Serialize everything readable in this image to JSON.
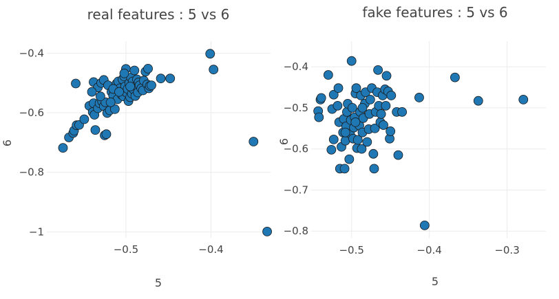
{
  "chart_data": [
    {
      "type": "scatter",
      "title": "real features : 5 vs 6",
      "xlabel": "5",
      "ylabel": "6",
      "xlim": [
        -0.593,
        -0.33
      ],
      "ylim": [
        -1.02,
        -0.36
      ],
      "xticks": [
        -0.5,
        -0.4
      ],
      "xtick_labels": [
        "−0.5",
        "−0.4"
      ],
      "yticks": [
        -0.4,
        -0.6,
        -0.8,
        -1.0
      ],
      "ytick_labels": [
        "−0.4",
        "−0.6",
        "−0.8",
        "−1"
      ],
      "grid": true,
      "color": "#1f77b4",
      "points": [
        [
          -0.574,
          -0.718
        ],
        [
          -0.567,
          -0.683
        ],
        [
          -0.562,
          -0.668
        ],
        [
          -0.561,
          -0.66
        ],
        [
          -0.558,
          -0.642
        ],
        [
          -0.555,
          -0.641
        ],
        [
          -0.549,
          -0.622
        ],
        [
          -0.559,
          -0.502
        ],
        [
          -0.543,
          -0.577
        ],
        [
          -0.539,
          -0.598
        ],
        [
          -0.538,
          -0.568
        ],
        [
          -0.537,
          -0.607
        ],
        [
          -0.536,
          -0.658
        ],
        [
          -0.533,
          -0.585
        ],
        [
          -0.531,
          -0.568
        ],
        [
          -0.528,
          -0.562
        ],
        [
          -0.526,
          -0.578
        ],
        [
          -0.524,
          -0.565
        ],
        [
          -0.522,
          -0.601
        ],
        [
          -0.525,
          -0.676
        ],
        [
          -0.523,
          -0.672
        ],
        [
          -0.538,
          -0.497
        ],
        [
          -0.533,
          -0.515
        ],
        [
          -0.529,
          -0.5
        ],
        [
          -0.526,
          -0.49
        ],
        [
          -0.521,
          -0.508
        ],
        [
          -0.519,
          -0.592
        ],
        [
          -0.517,
          -0.53
        ],
        [
          -0.515,
          -0.543
        ],
        [
          -0.513,
          -0.588
        ],
        [
          -0.511,
          -0.502
        ],
        [
          -0.51,
          -0.555
        ],
        [
          -0.509,
          -0.495
        ],
        [
          -0.507,
          -0.518
        ],
        [
          -0.505,
          -0.54
        ],
        [
          -0.504,
          -0.488
        ],
        [
          -0.503,
          -0.545
        ],
        [
          -0.502,
          -0.478
        ],
        [
          -0.501,
          -0.512
        ],
        [
          -0.5,
          -0.453
        ],
        [
          -0.499,
          -0.533
        ],
        [
          -0.498,
          -0.52
        ],
        [
          -0.497,
          -0.561
        ],
        [
          -0.496,
          -0.5
        ],
        [
          -0.495,
          -0.548
        ],
        [
          -0.494,
          -0.482
        ],
        [
          -0.493,
          -0.536
        ],
        [
          -0.492,
          -0.495
        ],
        [
          -0.491,
          -0.522
        ],
        [
          -0.49,
          -0.458
        ],
        [
          -0.489,
          -0.544
        ],
        [
          -0.488,
          -0.51
        ],
        [
          -0.487,
          -0.488
        ],
        [
          -0.486,
          -0.532
        ],
        [
          -0.485,
          -0.498
        ],
        [
          -0.484,
          -0.508
        ],
        [
          -0.482,
          -0.518
        ],
        [
          -0.48,
          -0.525
        ],
        [
          -0.479,
          -0.492
        ],
        [
          -0.477,
          -0.462
        ],
        [
          -0.475,
          -0.505
        ],
        [
          -0.474,
          -0.452
        ],
        [
          -0.473,
          -0.518
        ],
        [
          -0.472,
          -0.51
        ],
        [
          -0.47,
          -0.508
        ],
        [
          -0.459,
          -0.485
        ],
        [
          -0.448,
          -0.485
        ],
        [
          -0.54,
          -0.53
        ],
        [
          -0.53,
          -0.545
        ],
        [
          -0.515,
          -0.52
        ],
        [
          -0.508,
          -0.53
        ],
        [
          -0.495,
          -0.512
        ],
        [
          -0.518,
          -0.565
        ],
        [
          -0.502,
          -0.468
        ],
        [
          -0.401,
          -0.402
        ],
        [
          -0.397,
          -0.455
        ],
        [
          -0.35,
          -0.697
        ],
        [
          -0.334,
          -0.999
        ]
      ]
    },
    {
      "type": "scatter",
      "title": "fake features : 5 vs 6",
      "xlabel": "5",
      "ylabel": "6",
      "xlim": [
        -0.552,
        -0.25
      ],
      "ylim": [
        -0.818,
        -0.338
      ],
      "xticks": [
        -0.5,
        -0.4,
        -0.3
      ],
      "xtick_labels": [
        "−0.5",
        "−0.4",
        "−0.3"
      ],
      "yticks": [
        -0.4,
        -0.5,
        -0.6,
        -0.7,
        -0.8
      ],
      "ytick_labels": [
        "−0.4",
        "−0.5",
        "−0.6",
        "−0.7",
        "−0.8"
      ],
      "grid": true,
      "color": "#1f77b4",
      "points": [
        [
          -0.543,
          -0.508
        ],
        [
          -0.542,
          -0.523
        ],
        [
          -0.54,
          -0.48
        ],
        [
          -0.539,
          -0.476
        ],
        [
          -0.53,
          -0.42
        ],
        [
          -0.526,
          -0.602
        ],
        [
          -0.523,
          -0.577
        ],
        [
          -0.525,
          -0.503
        ],
        [
          -0.523,
          -0.468
        ],
        [
          -0.517,
          -0.452
        ],
        [
          -0.516,
          -0.535
        ],
        [
          -0.515,
          -0.648
        ],
        [
          -0.513,
          -0.595
        ],
        [
          -0.511,
          -0.56
        ],
        [
          -0.51,
          -0.527
        ],
        [
          -0.509,
          -0.648
        ],
        [
          -0.508,
          -0.58
        ],
        [
          -0.507,
          -0.545
        ],
        [
          -0.506,
          -0.51
        ],
        [
          -0.505,
          -0.49
        ],
        [
          -0.503,
          -0.625
        ],
        [
          -0.502,
          -0.563
        ],
        [
          -0.501,
          -0.53
        ],
        [
          -0.5,
          -0.386
        ],
        [
          -0.499,
          -0.5
        ],
        [
          -0.498,
          -0.575
        ],
        [
          -0.497,
          -0.548
        ],
        [
          -0.496,
          -0.523
        ],
        [
          -0.495,
          -0.465
        ],
        [
          -0.494,
          -0.452
        ],
        [
          -0.493,
          -0.598
        ],
        [
          -0.492,
          -0.578
        ],
        [
          -0.49,
          -0.543
        ],
        [
          -0.489,
          -0.51
        ],
        [
          -0.488,
          -0.47
        ],
        [
          -0.487,
          -0.6
        ],
        [
          -0.486,
          -0.56
        ],
        [
          -0.485,
          -0.525
        ],
        [
          -0.483,
          -0.49
        ],
        [
          -0.482,
          -0.462
        ],
        [
          -0.48,
          -0.583
        ],
        [
          -0.478,
          -0.552
        ],
        [
          -0.477,
          -0.515
        ],
        [
          -0.476,
          -0.48
        ],
        [
          -0.474,
          -0.452
        ],
        [
          -0.472,
          -0.612
        ],
        [
          -0.471,
          -0.648
        ],
        [
          -0.47,
          -0.55
        ],
        [
          -0.469,
          -0.51
        ],
        [
          -0.467,
          -0.462
        ],
        [
          -0.466,
          -0.408
        ],
        [
          -0.465,
          -0.495
        ],
        [
          -0.463,
          -0.535
        ],
        [
          -0.462,
          -0.515
        ],
        [
          -0.46,
          -0.47
        ],
        [
          -0.459,
          -0.542
        ],
        [
          -0.457,
          -0.455
        ],
        [
          -0.456,
          -0.495
        ],
        [
          -0.455,
          -0.422
        ],
        [
          -0.453,
          -0.46
        ],
        [
          -0.451,
          -0.575
        ],
        [
          -0.45,
          -0.557
        ],
        [
          -0.449,
          -0.47
        ],
        [
          -0.442,
          -0.51
        ],
        [
          -0.44,
          -0.615
        ],
        [
          -0.435,
          -0.51
        ],
        [
          -0.413,
          -0.475
        ],
        [
          -0.406,
          -0.786
        ],
        [
          -0.367,
          -0.426
        ],
        [
          -0.337,
          -0.483
        ],
        [
          -0.279,
          -0.48
        ],
        [
          -0.518,
          -0.495
        ],
        [
          -0.508,
          -0.56
        ],
        [
          -0.495,
          -0.535
        ],
        [
          -0.486,
          -0.5
        ]
      ]
    }
  ]
}
